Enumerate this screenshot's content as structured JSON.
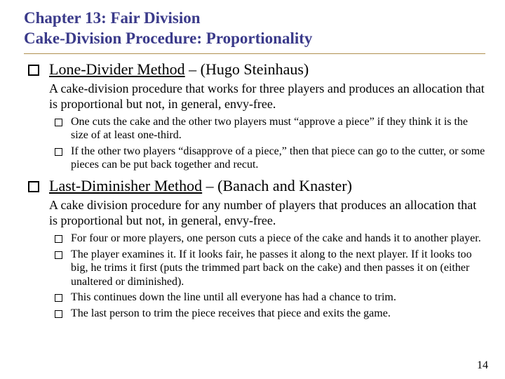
{
  "colors": {
    "title_color": "#3a3a8a",
    "rule_color": "#b09050",
    "text_color": "#000000",
    "background": "#ffffff"
  },
  "typography": {
    "title_fontsize_pt": 23,
    "lvl1_fontsize_pt": 22,
    "desc_fontsize_pt": 18,
    "lvl2_fontsize_pt": 16,
    "pagenum_fontsize_pt": 16,
    "font_family": "Times New Roman"
  },
  "title": {
    "line1": "Chapter 13:  Fair Division",
    "line2": "Cake-Division Procedure:  Proportionality"
  },
  "sections": [
    {
      "heading_underlined": "Lone-Divider Method",
      "heading_rest": " – (Hugo Steinhaus)",
      "description": "A cake-division procedure that works for three players and produces an allocation that is proportional but not, in general, envy-free.",
      "subitems": [
        "One cuts the cake and the other two players must  “approve a piece” if they think it is the size of at least one-third.",
        "If the other two players “disapprove of a piece,” then that piece can go to the cutter, or some pieces can be put back together and recut."
      ]
    },
    {
      "heading_underlined": "Last-Diminisher Method",
      "heading_rest": " – (Banach and Knaster)",
      "description": "A cake division procedure for any number of players that produces an allocation that is proportional but not, in general, envy-free.",
      "subitems": [
        "For four or more players, one person cuts  a piece of the cake and hands it to another player.",
        "The player examines it. If it looks fair, he passes it along to the next player. If it looks too big, he trims it first (puts the trimmed part back on the cake) and then passes it on (either unaltered or diminished).",
        "This continues down the line until all everyone has had a chance to trim.",
        "The last person to trim the piece receives that piece and exits the game."
      ]
    }
  ],
  "page_number": "14"
}
